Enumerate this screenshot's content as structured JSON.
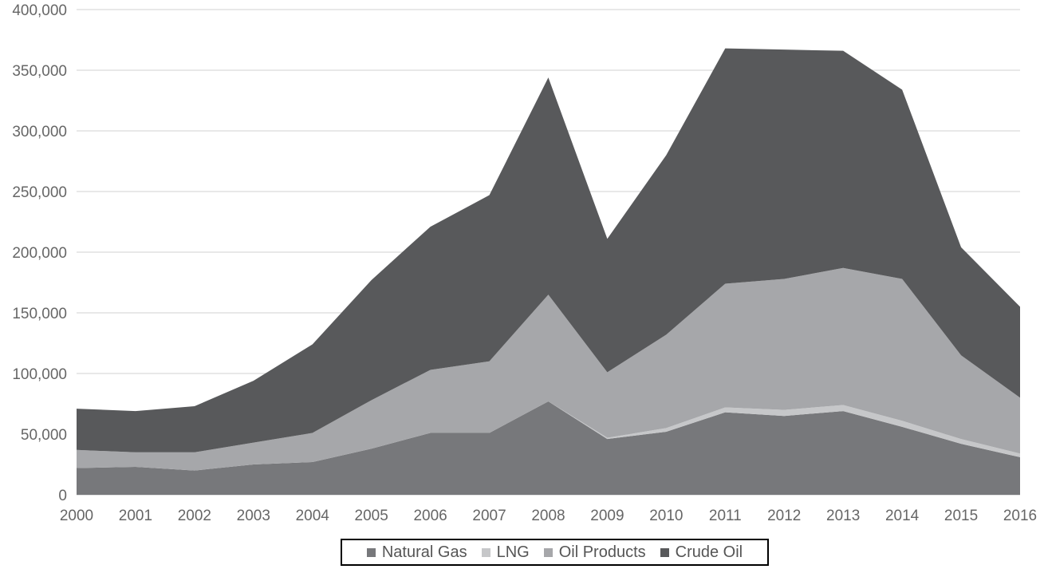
{
  "chart_data": {
    "type": "area",
    "stacked": true,
    "title": "",
    "xlabel": "",
    "ylabel": "",
    "x": [
      "2000",
      "2001",
      "2002",
      "2003",
      "2004",
      "2005",
      "2006",
      "2007",
      "2008",
      "2009",
      "2010",
      "2011",
      "2012",
      "2013",
      "2014",
      "2015",
      "2016"
    ],
    "ylim": [
      0,
      400000
    ],
    "yticks": [
      "0",
      "50,000",
      "100,000",
      "150,000",
      "200,000",
      "250,000",
      "300,000",
      "350,000",
      "400,000"
    ],
    "grid": true,
    "legend_position": "bottom",
    "series": [
      {
        "name": "Natural Gas",
        "color": "#77787b",
        "values": [
          22000,
          23000,
          20000,
          25000,
          27000,
          38000,
          51000,
          51000,
          77000,
          46000,
          52000,
          68000,
          65000,
          69000,
          56000,
          42000,
          31000
        ]
      },
      {
        "name": "LNG",
        "color": "#c6c7c9",
        "values": [
          0,
          0,
          0,
          0,
          0,
          0,
          0,
          0,
          0,
          1000,
          3000,
          4000,
          5000,
          5000,
          5000,
          4000,
          3000
        ]
      },
      {
        "name": "Oil Products",
        "color": "#a6a7aa",
        "values": [
          15000,
          12000,
          15000,
          18000,
          24000,
          40000,
          52000,
          59000,
          88000,
          54000,
          77000,
          102000,
          108000,
          113000,
          117000,
          69000,
          46000
        ]
      },
      {
        "name": "Crude Oil",
        "color": "#58595b",
        "values": [
          34000,
          34000,
          38000,
          51000,
          73000,
          99000,
          118000,
          137000,
          179000,
          110000,
          148000,
          194000,
          189000,
          179000,
          156000,
          89000,
          75000
        ]
      }
    ]
  }
}
